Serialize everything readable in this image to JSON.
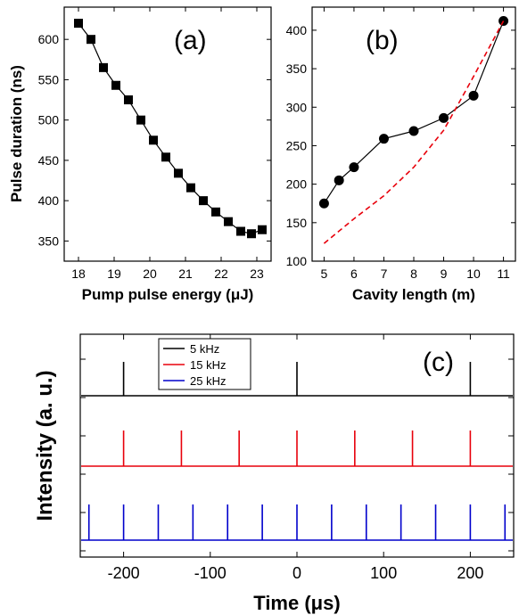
{
  "chart_data": [
    {
      "panel": "(a)",
      "type": "line",
      "xlabel": "Pump pulse energy (μJ)",
      "ylabel": "Pulse duration (ns)",
      "xlim": [
        17.6,
        23.4
      ],
      "ylim": [
        325,
        640
      ],
      "xticks": [
        18,
        19,
        20,
        21,
        22,
        23
      ],
      "yticks": [
        350,
        400,
        450,
        500,
        550,
        600
      ],
      "series": [
        {
          "marker": "square",
          "color": "#000000",
          "x": [
            18.0,
            18.35,
            18.7,
            19.05,
            19.4,
            19.75,
            20.1,
            20.45,
            20.8,
            21.15,
            21.5,
            21.85,
            22.2,
            22.55,
            22.85,
            23.15
          ],
          "y": [
            620,
            600,
            565,
            543,
            525,
            500,
            475,
            454,
            434,
            416,
            400,
            386,
            374,
            362,
            359,
            364
          ]
        }
      ]
    },
    {
      "panel": "(b)",
      "type": "line",
      "xlabel": "Cavity length (m)",
      "ylabel": "",
      "xlim": [
        4.6,
        11.4
      ],
      "ylim": [
        100,
        430
      ],
      "xticks": [
        5,
        6,
        7,
        8,
        9,
        10,
        11
      ],
      "yticks": [
        100,
        150,
        200,
        250,
        300,
        350,
        400
      ],
      "series": [
        {
          "marker": "circle",
          "color": "#000000",
          "x": [
            5,
            5.5,
            6,
            7,
            8,
            9,
            10,
            11
          ],
          "y": [
            175,
            205,
            222,
            259,
            269,
            286,
            315,
            412
          ]
        },
        {
          "style": "dashed",
          "color": "#e8000b",
          "x": [
            5,
            6,
            7,
            8,
            9,
            10,
            11
          ],
          "y": [
            123,
            155,
            185,
            222,
            270,
            340,
            412
          ]
        }
      ]
    },
    {
      "panel": "(c)",
      "type": "line",
      "xlabel": "Time (μs)",
      "ylabel": "Intensity (a. u.)",
      "xlim": [
        -250,
        250
      ],
      "xticks": [
        -200,
        -100,
        0,
        100,
        200
      ],
      "legend": "top-left",
      "series": [
        {
          "name": "5 kHz",
          "color": "#000000",
          "period_us": 200,
          "pulse_times": [
            -200,
            0,
            200
          ]
        },
        {
          "name": "15 kHz",
          "color": "#e8000b",
          "period_us": 66.7,
          "pulse_times": [
            -200,
            -133.3,
            -66.7,
            0,
            66.7,
            133.3,
            200
          ]
        },
        {
          "name": "25 kHz",
          "color": "#0000cc",
          "period_us": 40,
          "pulse_times": [
            -240,
            -200,
            -160,
            -120,
            -80,
            -40,
            0,
            40,
            80,
            120,
            160,
            200,
            240
          ]
        }
      ]
    }
  ]
}
